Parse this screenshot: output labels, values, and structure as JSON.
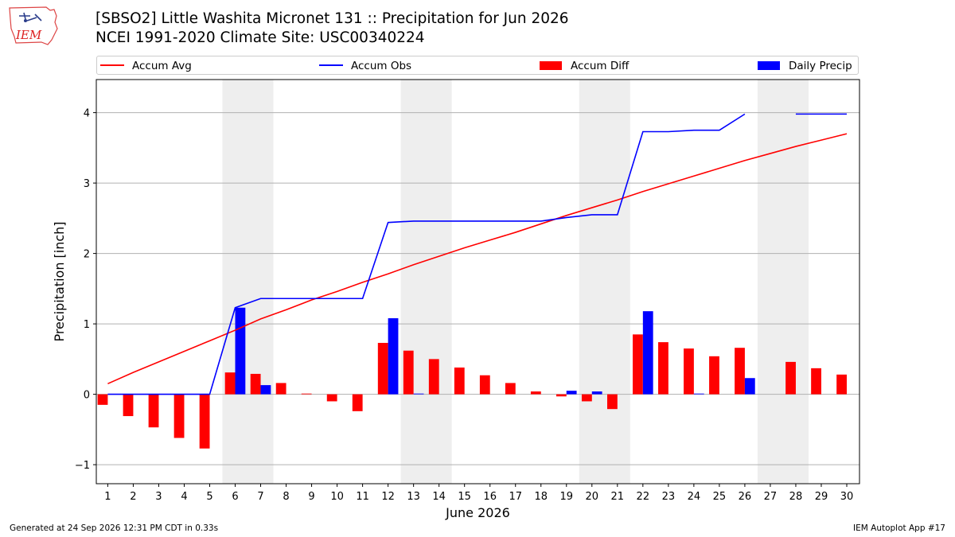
{
  "logo": {
    "text": "IEM",
    "name": "iem-logo"
  },
  "title_line1": "[SBSO2] Little Washita Micronet 131 :: Precipitation for Jun 2026",
  "title_line2": "NCEI 1991-2020 Climate Site: USC00340224",
  "legend": {
    "accum_avg": "Accum Avg",
    "accum_obs": "Accum Obs",
    "accum_diff": "Accum Diff",
    "daily_precip": "Daily Precip"
  },
  "footer": {
    "generated": "Generated at 24 Sep 2026 12:31 PM CDT in 0.33s",
    "app": "IEM Autoplot App #17"
  },
  "colors": {
    "avg": "#ff0000",
    "obs": "#0000ff",
    "diff": "#ff0000",
    "daily": "#0000ff",
    "weekend": "#eeeeee",
    "grid": "#b0b0b0"
  },
  "chart_data": {
    "type": "bar",
    "xlabel": "June 2026",
    "ylabel": "Precipitation [inch]",
    "ylim": [
      -1.27,
      4.47
    ],
    "xlim": [
      0.55,
      30.5
    ],
    "yticks": [
      -1,
      0,
      1,
      2,
      3,
      4
    ],
    "ytick_labels": [
      "−1",
      "0",
      "1",
      "2",
      "3",
      "4"
    ],
    "days": [
      1,
      2,
      3,
      4,
      5,
      6,
      7,
      8,
      9,
      10,
      11,
      12,
      13,
      14,
      15,
      16,
      17,
      18,
      19,
      20,
      21,
      22,
      23,
      24,
      25,
      26,
      27,
      28,
      29,
      30
    ],
    "weekend_spans": [
      [
        6,
        7
      ],
      [
        13,
        14
      ],
      [
        20,
        21
      ],
      [
        27,
        28
      ]
    ],
    "grid": "horizontal",
    "legend_position": "top",
    "series": [
      {
        "name": "Accum Avg",
        "kind": "line",
        "values": [
          0.15,
          0.31,
          0.46,
          0.61,
          0.76,
          0.91,
          1.07,
          1.2,
          1.34,
          1.46,
          1.59,
          1.71,
          1.84,
          1.96,
          2.08,
          2.19,
          2.3,
          2.42,
          2.54,
          2.65,
          2.76,
          2.88,
          2.99,
          3.1,
          3.21,
          3.32,
          3.42,
          3.52,
          3.61,
          3.7
        ]
      },
      {
        "name": "Accum Obs",
        "kind": "line",
        "values": [
          0,
          0,
          0,
          0,
          0,
          1.23,
          1.36,
          1.36,
          1.36,
          1.36,
          1.36,
          2.44,
          2.46,
          2.46,
          2.46,
          2.46,
          2.46,
          2.46,
          2.51,
          2.55,
          2.55,
          3.73,
          3.73,
          3.75,
          3.75,
          3.98,
          null,
          3.98,
          3.98,
          3.98
        ]
      },
      {
        "name": "Accum Diff",
        "kind": "bar",
        "offset": "left",
        "values": [
          -0.15,
          -0.31,
          -0.47,
          -0.62,
          -0.77,
          0.31,
          0.29,
          0.16,
          0.01,
          -0.1,
          -0.24,
          0.73,
          0.62,
          0.5,
          0.38,
          0.27,
          0.16,
          0.04,
          -0.03,
          -0.1,
          -0.21,
          0.85,
          0.74,
          0.65,
          0.54,
          0.66,
          null,
          0.46,
          0.37,
          0.28
        ]
      },
      {
        "name": "Daily Precip",
        "kind": "bar",
        "offset": "right",
        "values": [
          0,
          0,
          0,
          0,
          0,
          1.23,
          0.13,
          0,
          0,
          0,
          0,
          1.08,
          0.01,
          0,
          0,
          0,
          0,
          0,
          0.05,
          0.04,
          0,
          1.18,
          0,
          0.01,
          0,
          0.23,
          null,
          0,
          0,
          0
        ]
      }
    ]
  }
}
